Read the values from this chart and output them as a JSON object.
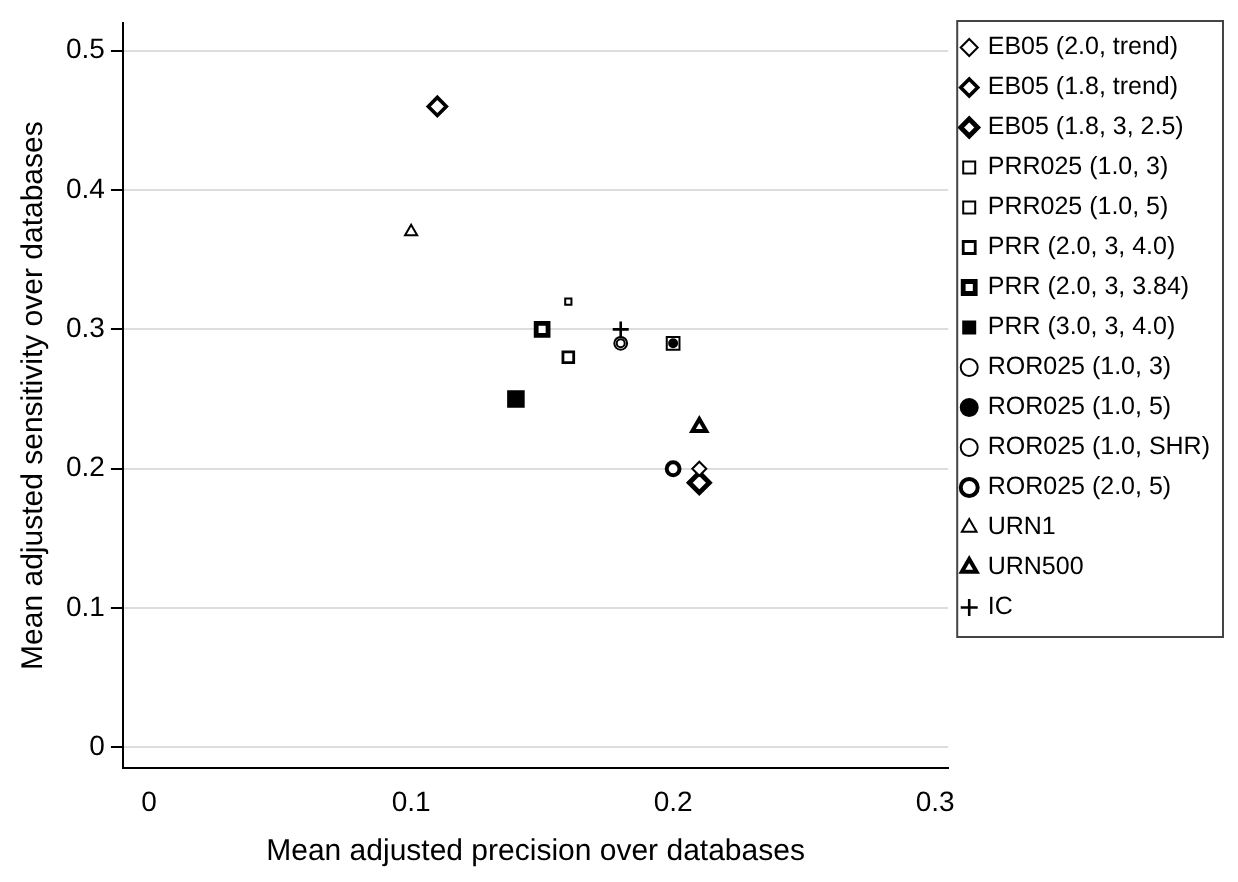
{
  "chart_data": {
    "type": "scatter",
    "xlabel": "Mean adjusted precision over databases",
    "ylabel": "Mean adjusted sensitivity over databases",
    "xlim": [
      -0.01,
      0.305
    ],
    "xticks": [
      0,
      0.1,
      0.2,
      0.3
    ],
    "ylim": [
      -0.015,
      0.52
    ],
    "yticks": [
      0,
      0.1,
      0.2,
      0.3,
      0.4,
      0.5
    ],
    "grid": "y",
    "legend": "right",
    "series": [
      {
        "name": "EB05 (2.0, trend)",
        "color": "#000000",
        "marker": "diamond",
        "x": [
          0.21
        ],
        "values": [
          0.2
        ]
      },
      {
        "name": "EB05 (1.8, trend)",
        "color": "#000000",
        "marker": "diamond",
        "x": [
          0.11
        ],
        "values": [
          0.46
        ]
      },
      {
        "name": "EB05 (1.8, 3, 2.5)",
        "color": "#000000",
        "marker": "diamond",
        "x": [
          0.21
        ],
        "values": [
          0.19
        ]
      },
      {
        "name": "PRR025 (1.0, 3)",
        "color": "#000000",
        "marker": "square",
        "x": [
          0.16
        ],
        "values": [
          0.32
        ]
      },
      {
        "name": "PRR025 (1.0, 5)",
        "color": "#000000",
        "marker": "square",
        "x": [
          0.2
        ],
        "values": [
          0.29
        ]
      },
      {
        "name": "PRR (2.0, 3, 4.0)",
        "color": "#000000",
        "marker": "square",
        "x": [
          0.16
        ],
        "values": [
          0.28
        ]
      },
      {
        "name": "PRR (2.0, 3, 3.84)",
        "color": "#000000",
        "marker": "square",
        "x": [
          0.15
        ],
        "values": [
          0.3
        ]
      },
      {
        "name": "PRR (3.0, 3, 4.0)",
        "color": "#000000",
        "marker": "square",
        "x": [
          0.14
        ],
        "values": [
          0.25
        ]
      },
      {
        "name": "ROR025 (1.0, 3)",
        "color": "#000000",
        "marker": "circle",
        "x": [
          0.18
        ],
        "values": [
          0.29
        ]
      },
      {
        "name": "ROR025 (1.0, 5)",
        "color": "#000000",
        "marker": "circle",
        "x": [
          0.2
        ],
        "values": [
          0.29
        ]
      },
      {
        "name": "ROR025 (1.0, SHR)",
        "color": "#000000",
        "marker": "circle",
        "x": [
          0.18
        ],
        "values": [
          0.29
        ]
      },
      {
        "name": "ROR025 (2.0, 5)",
        "color": "#000000",
        "marker": "circle",
        "x": [
          0.2
        ],
        "values": [
          0.2
        ]
      },
      {
        "name": "URN1",
        "color": "#000000",
        "marker": "triangle",
        "x": [
          0.1
        ],
        "values": [
          0.37
        ]
      },
      {
        "name": "URN500",
        "color": "#000000",
        "marker": "triangle",
        "x": [
          0.21
        ],
        "values": [
          0.23
        ]
      },
      {
        "name": "IC",
        "color": "#000000",
        "marker": "cross",
        "x": [
          0.18
        ],
        "values": [
          0.3
        ]
      }
    ]
  }
}
